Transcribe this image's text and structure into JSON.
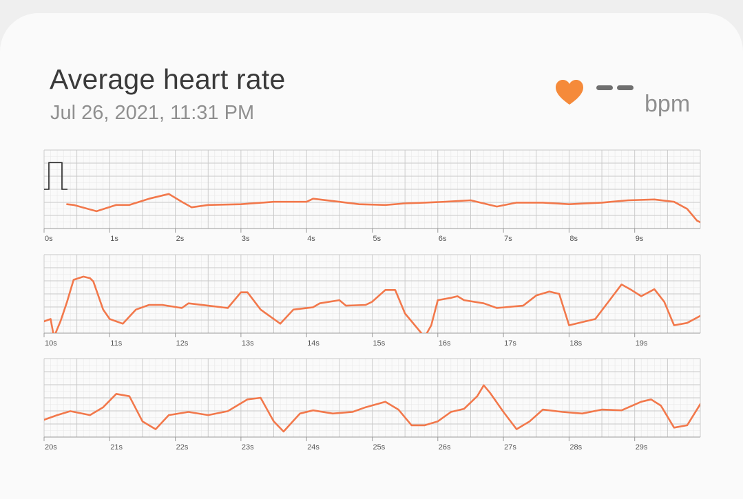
{
  "header": {
    "title": "Average heart rate",
    "timestamp": "Jul 26, 2021, 11:31 PM"
  },
  "readout": {
    "value": "--",
    "unit": "bpm",
    "icon": "heart-icon",
    "icon_color": "#f58a3a"
  },
  "colors": {
    "trace": "#f2784b",
    "grid_minor": "#e8e8e8",
    "grid_major": "#c8c8c8",
    "calibration": "#222222",
    "tick_label": "#555555"
  },
  "chart_data": [
    {
      "type": "line",
      "x_labels": [
        "0s",
        "1s",
        "2s",
        "3s",
        "4s",
        "5s",
        "6s",
        "7s",
        "8s",
        "9s"
      ],
      "xlim": [
        0,
        10
      ],
      "ylim": [
        0,
        1
      ],
      "calibration_pulse": true,
      "trace": [
        [
          0.35,
          0.31
        ],
        [
          0.45,
          0.3
        ],
        [
          0.8,
          0.22
        ],
        [
          1.1,
          0.3
        ],
        [
          1.3,
          0.3
        ],
        [
          1.6,
          0.38
        ],
        [
          1.9,
          0.44
        ],
        [
          2.1,
          0.34
        ],
        [
          2.25,
          0.27
        ],
        [
          2.5,
          0.3
        ],
        [
          3.0,
          0.31
        ],
        [
          3.5,
          0.34
        ],
        [
          4.0,
          0.34
        ],
        [
          4.1,
          0.38
        ],
        [
          4.5,
          0.34
        ],
        [
          4.8,
          0.31
        ],
        [
          5.2,
          0.3
        ],
        [
          5.5,
          0.32
        ],
        [
          5.8,
          0.33
        ],
        [
          6.1,
          0.34
        ],
        [
          6.5,
          0.36
        ],
        [
          6.9,
          0.28
        ],
        [
          7.2,
          0.33
        ],
        [
          7.6,
          0.33
        ],
        [
          8.0,
          0.31
        ],
        [
          8.5,
          0.33
        ],
        [
          8.9,
          0.36
        ],
        [
          9.3,
          0.37
        ],
        [
          9.6,
          0.34
        ],
        [
          9.8,
          0.25
        ],
        [
          9.95,
          0.1
        ],
        [
          10.0,
          0.08
        ]
      ]
    },
    {
      "type": "line",
      "x_labels": [
        "10s",
        "11s",
        "12s",
        "13s",
        "14s",
        "15s",
        "16s",
        "17s",
        "18s",
        "19s"
      ],
      "xlim": [
        10,
        20
      ],
      "ylim": [
        0,
        1
      ],
      "calibration_pulse": false,
      "trace": [
        [
          10.0,
          0.15
        ],
        [
          10.1,
          0.18
        ],
        [
          10.15,
          -0.05
        ],
        [
          10.25,
          0.15
        ],
        [
          10.35,
          0.4
        ],
        [
          10.45,
          0.68
        ],
        [
          10.6,
          0.72
        ],
        [
          10.7,
          0.7
        ],
        [
          10.75,
          0.66
        ],
        [
          10.9,
          0.3
        ],
        [
          11.0,
          0.18
        ],
        [
          11.2,
          0.12
        ],
        [
          11.4,
          0.3
        ],
        [
          11.6,
          0.36
        ],
        [
          11.8,
          0.36
        ],
        [
          12.1,
          0.32
        ],
        [
          12.2,
          0.38
        ],
        [
          12.5,
          0.35
        ],
        [
          12.8,
          0.32
        ],
        [
          13.0,
          0.52
        ],
        [
          13.1,
          0.52
        ],
        [
          13.3,
          0.3
        ],
        [
          13.6,
          0.12
        ],
        [
          13.8,
          0.3
        ],
        [
          14.1,
          0.33
        ],
        [
          14.2,
          0.38
        ],
        [
          14.5,
          0.42
        ],
        [
          14.6,
          0.35
        ],
        [
          14.9,
          0.36
        ],
        [
          15.0,
          0.4
        ],
        [
          15.2,
          0.55
        ],
        [
          15.35,
          0.55
        ],
        [
          15.5,
          0.25
        ],
        [
          15.8,
          -0.05
        ],
        [
          15.9,
          0.1
        ],
        [
          16.0,
          0.42
        ],
        [
          16.2,
          0.45
        ],
        [
          16.3,
          0.47
        ],
        [
          16.4,
          0.42
        ],
        [
          16.7,
          0.38
        ],
        [
          16.9,
          0.32
        ],
        [
          17.3,
          0.35
        ],
        [
          17.5,
          0.48
        ],
        [
          17.7,
          0.53
        ],
        [
          17.85,
          0.5
        ],
        [
          18.0,
          0.1
        ],
        [
          18.2,
          0.14
        ],
        [
          18.4,
          0.18
        ],
        [
          18.6,
          0.4
        ],
        [
          18.8,
          0.62
        ],
        [
          18.95,
          0.55
        ],
        [
          19.1,
          0.47
        ],
        [
          19.3,
          0.56
        ],
        [
          19.45,
          0.4
        ],
        [
          19.6,
          0.1
        ],
        [
          19.8,
          0.13
        ],
        [
          20.0,
          0.22
        ]
      ]
    },
    {
      "type": "line",
      "x_labels": [
        "20s",
        "21s",
        "22s",
        "23s",
        "24s",
        "25s",
        "26s",
        "27s",
        "28s",
        "29s"
      ],
      "xlim": [
        20,
        30
      ],
      "ylim": [
        0,
        1
      ],
      "calibration_pulse": false,
      "trace": [
        [
          20.0,
          0.22
        ],
        [
          20.2,
          0.28
        ],
        [
          20.4,
          0.33
        ],
        [
          20.7,
          0.28
        ],
        [
          20.9,
          0.38
        ],
        [
          21.1,
          0.55
        ],
        [
          21.3,
          0.52
        ],
        [
          21.5,
          0.2
        ],
        [
          21.7,
          0.1
        ],
        [
          21.9,
          0.28
        ],
        [
          22.2,
          0.32
        ],
        [
          22.5,
          0.28
        ],
        [
          22.8,
          0.33
        ],
        [
          23.1,
          0.48
        ],
        [
          23.3,
          0.5
        ],
        [
          23.5,
          0.2
        ],
        [
          23.65,
          0.07
        ],
        [
          23.9,
          0.3
        ],
        [
          24.1,
          0.34
        ],
        [
          24.4,
          0.3
        ],
        [
          24.7,
          0.32
        ],
        [
          24.9,
          0.38
        ],
        [
          25.2,
          0.45
        ],
        [
          25.4,
          0.35
        ],
        [
          25.6,
          0.15
        ],
        [
          25.8,
          0.15
        ],
        [
          26.0,
          0.2
        ],
        [
          26.2,
          0.32
        ],
        [
          26.4,
          0.36
        ],
        [
          26.6,
          0.52
        ],
        [
          26.7,
          0.66
        ],
        [
          26.8,
          0.56
        ],
        [
          27.0,
          0.32
        ],
        [
          27.2,
          0.1
        ],
        [
          27.4,
          0.2
        ],
        [
          27.6,
          0.35
        ],
        [
          27.9,
          0.32
        ],
        [
          28.2,
          0.3
        ],
        [
          28.5,
          0.35
        ],
        [
          28.8,
          0.34
        ],
        [
          29.1,
          0.45
        ],
        [
          29.25,
          0.48
        ],
        [
          29.4,
          0.4
        ],
        [
          29.6,
          0.12
        ],
        [
          29.8,
          0.15
        ],
        [
          30.0,
          0.42
        ]
      ]
    }
  ]
}
